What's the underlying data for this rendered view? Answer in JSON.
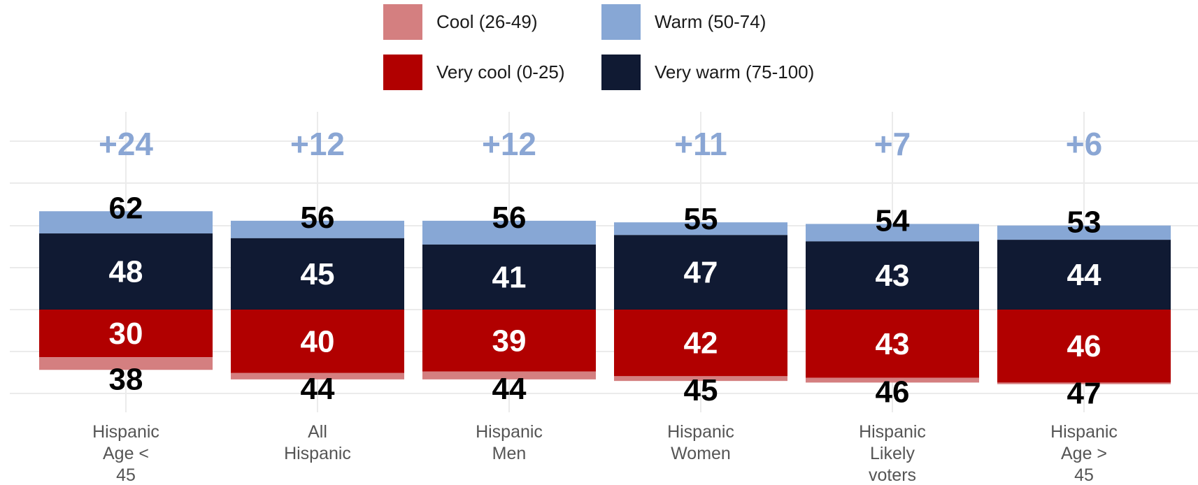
{
  "chart_data": {
    "type": "bar",
    "stacked": "diverging",
    "legend": [
      {
        "key": "cool",
        "label": "Cool (26-49)",
        "color": "#d47f80"
      },
      {
        "key": "warm",
        "label": "Warm (50-74)",
        "color": "#87a7d5"
      },
      {
        "key": "very_cool",
        "label": "Very cool (0-25)",
        "color": "#b10000"
      },
      {
        "key": "very_warm",
        "label": "Very warm (75-100)",
        "color": "#101a33"
      }
    ],
    "legend_position": "top",
    "categories": [
      [
        "Hispanic",
        "Age <",
        "45"
      ],
      [
        "All",
        "Hispanic"
      ],
      [
        "Hispanic",
        "Men"
      ],
      [
        "Hispanic",
        "Women"
      ],
      [
        "Hispanic",
        "Likely",
        "voters"
      ],
      [
        "Hispanic",
        "Age >",
        "45"
      ]
    ],
    "series": [
      {
        "key": "very_warm",
        "values": [
          48,
          45,
          41,
          47,
          43,
          44
        ]
      },
      {
        "key": "warm",
        "values": [
          14,
          11,
          15,
          8,
          11,
          9
        ]
      },
      {
        "key": "very_cool",
        "values": [
          30,
          40,
          39,
          42,
          43,
          46
        ]
      },
      {
        "key": "cool",
        "values": [
          8,
          4,
          5,
          3,
          3,
          1
        ]
      }
    ],
    "warm_totals": [
      62,
      56,
      56,
      55,
      54,
      53
    ],
    "cool_totals": [
      38,
      44,
      44,
      45,
      46,
      47
    ],
    "net_labels": [
      "+24",
      "+12",
      "+12",
      "+11",
      "+7",
      "+6"
    ],
    "grid": true,
    "colors": {
      "net_label": "#8aa6d4",
      "grid": "#ebebeb",
      "tick_text": "#555555"
    }
  }
}
